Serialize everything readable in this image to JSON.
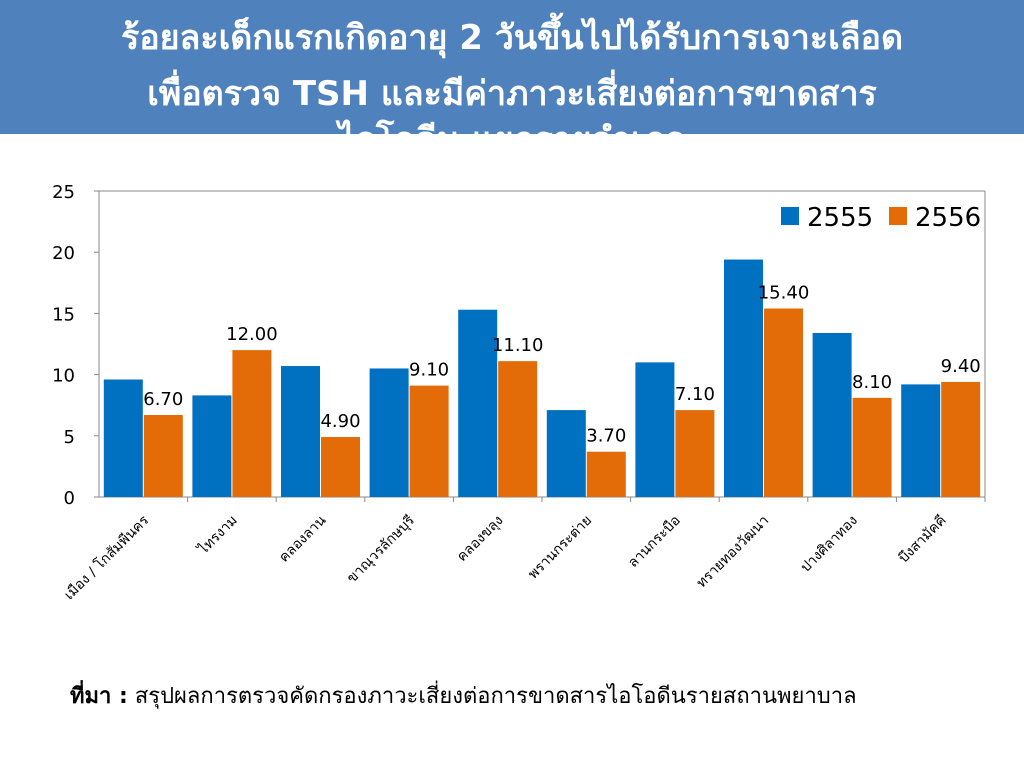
{
  "slide": {
    "title_lines": [
      "ร้อยละเด็กแรกเกิดอายุ 2 วันขึ้นไปได้รับการเจาะเลือด",
      "เพื่อตรวจ TSH และมีค่าภาวะเสี่ยงต่อการขาดสาร",
      "ไอโอดีน แยกรายอำเภอ"
    ],
    "source_label": "ที่มา :",
    "source_text": "สรุปผลการตรวจคัดกรองภาวะเสี่ยงต่อการขาดสารไอโอดีนรายสถานพยาบาล"
  },
  "colors": {
    "header_bg": "#4f81bd",
    "series_2555": "#0070c0",
    "series_2556": "#e36c09"
  },
  "chart_data": {
    "type": "bar",
    "categories": [
      "เมือง / โกสัมพีนคร",
      "ไทรงาม",
      "คลองลาน",
      "ขาณุวรลักษบุรี",
      "คลองขลุง",
      "พรานกระต่าย",
      "ลานกระบือ",
      "ทรายทองวัฒนา",
      "ปางศิลาทอง",
      "บึงสามัคคี"
    ],
    "series": [
      {
        "name": "2555",
        "color": "#0070c0",
        "values": [
          9.6,
          8.3,
          10.7,
          10.5,
          15.3,
          7.1,
          11.0,
          19.4,
          13.4,
          9.2
        ]
      },
      {
        "name": "2556",
        "color": "#e36c09",
        "values": [
          6.7,
          12.0,
          4.9,
          9.1,
          11.1,
          3.7,
          7.1,
          15.4,
          8.1,
          9.4
        ],
        "data_labels": [
          "6.70",
          "12.00",
          "4.90",
          "9.10",
          "11.10",
          "3.70",
          "7.10",
          "15.40",
          "8.10",
          "9.40"
        ]
      }
    ],
    "yticks": [
      "0",
      "5",
      "10",
      "15",
      "20",
      "25"
    ],
    "ylim": [
      0,
      25
    ],
    "grid": false,
    "legend_position": "top-right"
  }
}
